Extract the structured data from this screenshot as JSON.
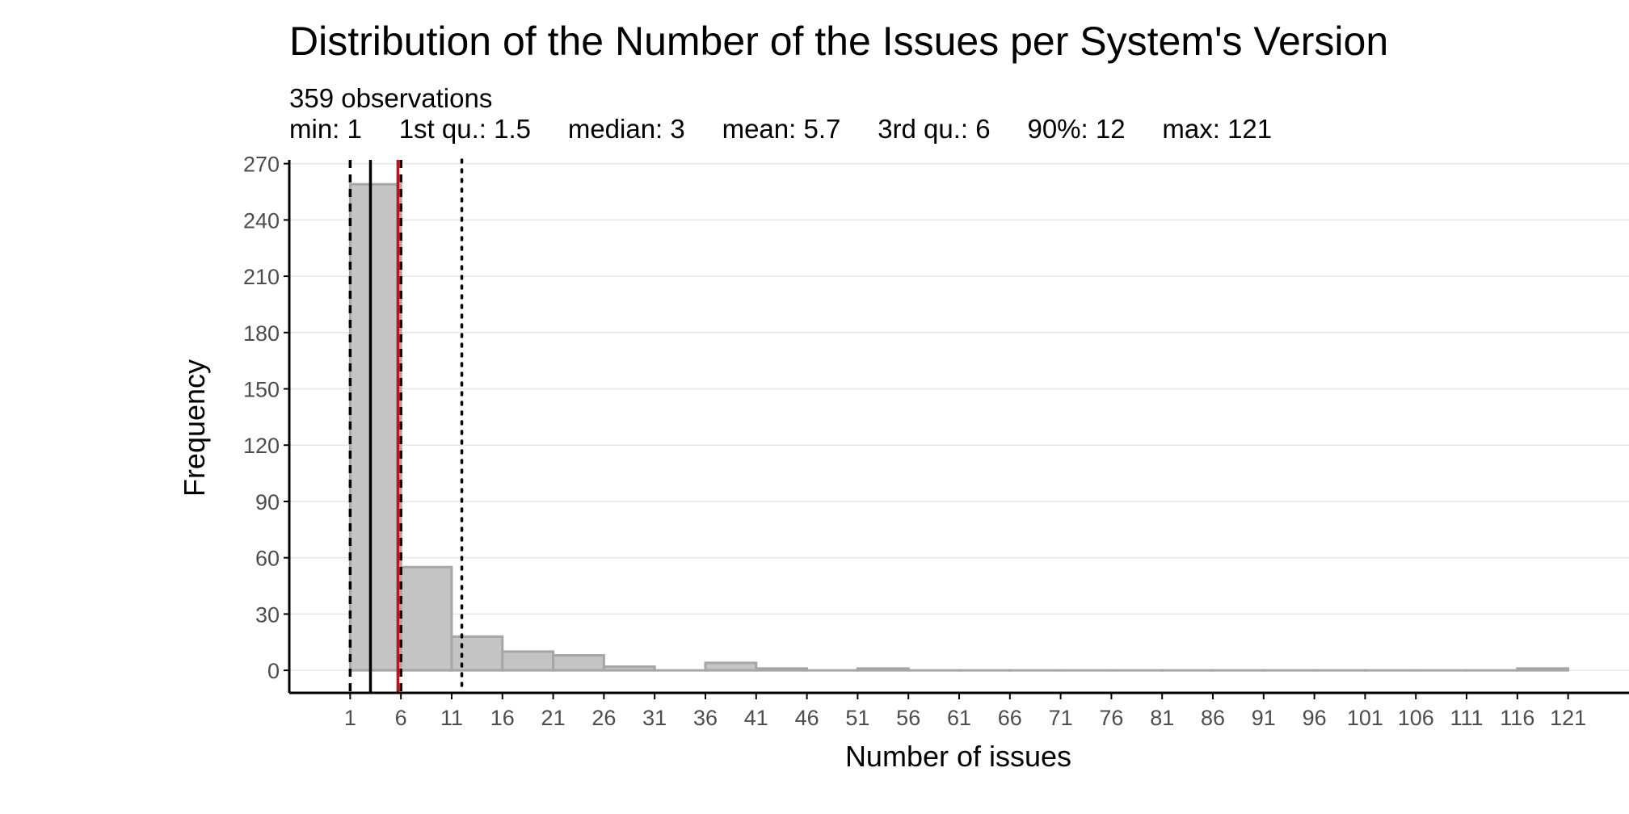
{
  "chart_data": {
    "type": "bar",
    "title": "Distribution of the Number of the Issues per System's Version",
    "subtitle_lines": [
      "359 observations",
      "min: 1     1st qu.: 1.5     median: 3     mean: 5.7     3rd qu.: 6     90%: 12     max: 121"
    ],
    "xlabel": "Number of issues",
    "ylabel": "Frequency",
    "bin_width": 5,
    "bins": [
      {
        "x0": 1,
        "x1": 6,
        "count": 259
      },
      {
        "x0": 6,
        "x1": 11,
        "count": 55
      },
      {
        "x0": 11,
        "x1": 16,
        "count": 18
      },
      {
        "x0": 16,
        "x1": 21,
        "count": 10
      },
      {
        "x0": 21,
        "x1": 26,
        "count": 8
      },
      {
        "x0": 26,
        "x1": 31,
        "count": 2
      },
      {
        "x0": 31,
        "x1": 36,
        "count": 0
      },
      {
        "x0": 36,
        "x1": 41,
        "count": 4
      },
      {
        "x0": 41,
        "x1": 46,
        "count": 1
      },
      {
        "x0": 46,
        "x1": 51,
        "count": 0
      },
      {
        "x0": 51,
        "x1": 56,
        "count": 1
      },
      {
        "x0": 56,
        "x1": 61,
        "count": 0
      },
      {
        "x0": 61,
        "x1": 66,
        "count": 0
      },
      {
        "x0": 66,
        "x1": 71,
        "count": 0
      },
      {
        "x0": 71,
        "x1": 76,
        "count": 0
      },
      {
        "x0": 76,
        "x1": 81,
        "count": 0
      },
      {
        "x0": 81,
        "x1": 86,
        "count": 0
      },
      {
        "x0": 86,
        "x1": 91,
        "count": 0
      },
      {
        "x0": 91,
        "x1": 96,
        "count": 0
      },
      {
        "x0": 96,
        "x1": 101,
        "count": 0
      },
      {
        "x0": 101,
        "x1": 106,
        "count": 0
      },
      {
        "x0": 106,
        "x1": 111,
        "count": 0
      },
      {
        "x0": 111,
        "x1": 116,
        "count": 0
      },
      {
        "x0": 116,
        "x1": 121,
        "count": 1
      }
    ],
    "xticks": [
      "1",
      "6",
      "11",
      "16",
      "21",
      "26",
      "31",
      "36",
      "41",
      "46",
      "51",
      "56",
      "61",
      "66",
      "71",
      "76",
      "81",
      "86",
      "91",
      "96",
      "101",
      "106",
      "111",
      "116",
      "121"
    ],
    "yticks": [
      "0",
      "30",
      "60",
      "90",
      "120",
      "150",
      "180",
      "210",
      "240",
      "270"
    ],
    "xlim": [
      -5,
      127
    ],
    "ylim": [
      -12,
      272
    ],
    "grid": "horizontal",
    "reference_lines": [
      {
        "stat": "min",
        "value": 1,
        "style": "dashed",
        "color": "#000000"
      },
      {
        "stat": "median",
        "value": 3,
        "style": "solid",
        "color": "#000000"
      },
      {
        "stat": "mean",
        "value": 5.7,
        "style": "solid",
        "color": "#e8000b"
      },
      {
        "stat": "3rd qu.",
        "value": 6,
        "style": "dashed",
        "color": "#000000"
      },
      {
        "stat": "90%",
        "value": 12,
        "style": "dotted",
        "color": "#000000"
      }
    ],
    "colors": {
      "bar_fill": "#c4c4c4",
      "bar_stroke": "#a6a6a6",
      "grid": "#e6e6e6",
      "axis": "#000000",
      "tick_text": "#4d4d4d"
    }
  }
}
